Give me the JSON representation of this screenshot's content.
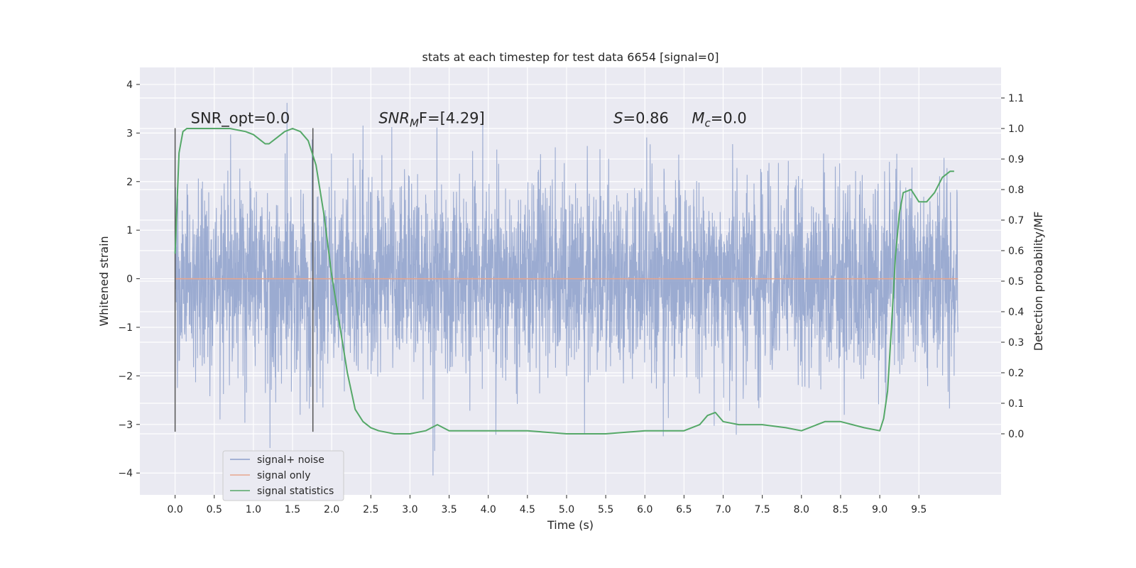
{
  "chart_data": {
    "type": "line",
    "title": "stats at each timestep for test data 6654 [signal=0]",
    "xlabel": "Time (s)",
    "ylabel": "Whitened strain",
    "y2label": "Detection probability/MF",
    "xlim": [
      -0.45,
      10.55
    ],
    "ylim": [
      -4.45,
      4.35
    ],
    "y2lim": [
      -0.2,
      1.2
    ],
    "xticks": [
      0.0,
      0.5,
      1.0,
      1.5,
      2.0,
      2.5,
      3.0,
      3.5,
      4.0,
      4.5,
      5.0,
      5.5,
      6.0,
      6.5,
      7.0,
      7.5,
      8.0,
      8.5,
      9.0,
      9.5
    ],
    "xtick_labels": [
      "0.0",
      "0.5",
      "1.0",
      "1.5",
      "2.0",
      "2.5",
      "3.0",
      "3.5",
      "4.0",
      "4.5",
      "5.0",
      "5.5",
      "6.0",
      "6.5",
      "7.0",
      "7.5",
      "8.0",
      "8.5",
      "9.0",
      "9.5"
    ],
    "yticks": [
      4,
      3,
      2,
      1,
      0,
      -1,
      -2,
      -3,
      -4
    ],
    "ytick_labels": [
      "4",
      "3",
      "2",
      "1",
      "0",
      "−1",
      "−2",
      "−3",
      "−4"
    ],
    "y2ticks": [
      1.1,
      1.0,
      0.9,
      0.8,
      0.7,
      0.6,
      0.5,
      0.4,
      0.3,
      0.2,
      0.1,
      0.0
    ],
    "y2tick_labels": [
      "1.1",
      "1.0",
      "0.9",
      "0.8",
      "0.7",
      "0.6",
      "0.5",
      "0.4",
      "0.3",
      "0.2",
      "0.1",
      "0.0"
    ],
    "grid": true,
    "legend_position": "lower-left",
    "annotations": {
      "snr_opt": "SNR_opt=0.0",
      "snr_mf": "SNR",
      "snr_mf_sub": "M",
      "snr_mf_tail": "F=[4.29]",
      "s_stat": "S",
      "s_stat_tail": "=0.86",
      "mc": "M",
      "mc_sub": "c",
      "mc_tail": "=0.0"
    },
    "vlines": {
      "x": [
        0.0,
        1.76
      ],
      "ymin": -3.15,
      "ymax": 3.1
    },
    "series": [
      {
        "name": "signal+ noise",
        "color": "#8da0cb",
        "kind": "noise",
        "x_range": [
          0.0,
          10.0
        ],
        "envelope": [
          -4.05,
          4.0
        ]
      },
      {
        "name": "signal only",
        "color": "#e8a68d",
        "kind": "constant",
        "x": [
          0.0,
          10.0
        ],
        "y": [
          0.0,
          0.0
        ]
      },
      {
        "name": "signal statistics",
        "color": "#55a868",
        "kind": "line",
        "axis": "right",
        "x": [
          0.0,
          0.05,
          0.1,
          0.15,
          0.2,
          0.3,
          0.5,
          0.7,
          0.9,
          1.0,
          1.1,
          1.15,
          1.2,
          1.3,
          1.4,
          1.5,
          1.6,
          1.7,
          1.8,
          1.9,
          2.0,
          2.1,
          2.2,
          2.3,
          2.4,
          2.5,
          2.6,
          2.8,
          3.0,
          3.2,
          3.35,
          3.5,
          4.0,
          4.5,
          5.0,
          5.5,
          6.0,
          6.5,
          6.7,
          6.8,
          6.9,
          7.0,
          7.2,
          7.5,
          7.8,
          8.0,
          8.2,
          8.3,
          8.5,
          8.8,
          9.0,
          9.05,
          9.1,
          9.15,
          9.2,
          9.25,
          9.3,
          9.4,
          9.5,
          9.6,
          9.7,
          9.8,
          9.9,
          9.95
        ],
        "y": [
          0.59,
          0.92,
          0.99,
          1.0,
          1.0,
          1.0,
          1.0,
          1.0,
          0.99,
          0.98,
          0.96,
          0.95,
          0.95,
          0.97,
          0.99,
          1.0,
          0.99,
          0.96,
          0.88,
          0.72,
          0.52,
          0.36,
          0.2,
          0.08,
          0.04,
          0.02,
          0.01,
          0.0,
          0.0,
          0.01,
          0.03,
          0.01,
          0.01,
          0.01,
          0.0,
          0.0,
          0.01,
          0.01,
          0.03,
          0.06,
          0.07,
          0.04,
          0.03,
          0.03,
          0.02,
          0.01,
          0.03,
          0.04,
          0.04,
          0.02,
          0.01,
          0.05,
          0.14,
          0.35,
          0.58,
          0.72,
          0.79,
          0.8,
          0.76,
          0.76,
          0.79,
          0.84,
          0.86,
          0.86
        ]
      }
    ]
  }
}
